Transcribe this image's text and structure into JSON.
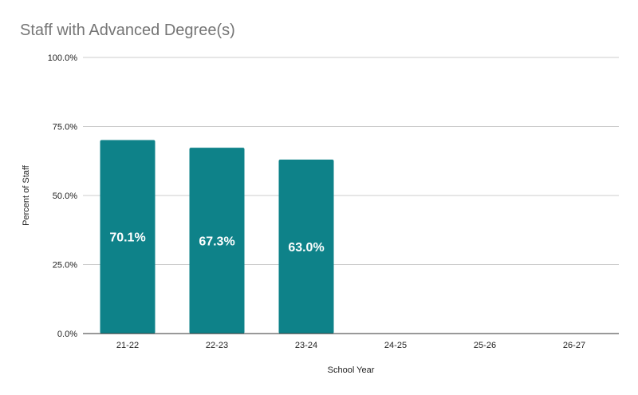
{
  "chart_data": {
    "type": "bar",
    "title": "Staff with Advanced Degree(s)",
    "xlabel": "School Year",
    "ylabel": "Percent of Staff",
    "categories": [
      "21-22",
      "22-23",
      "23-24",
      "24-25",
      "25-26",
      "26-27"
    ],
    "values": [
      70.1,
      67.3,
      63.0,
      null,
      null,
      null
    ],
    "data_labels": [
      "70.1%",
      "67.3%",
      "63.0%",
      "",
      "",
      ""
    ],
    "ylim": [
      0,
      100
    ],
    "y_ticks": [
      0,
      25,
      50,
      75,
      100
    ],
    "y_tick_labels": [
      "0.0%",
      "25.0%",
      "50.0%",
      "75.0%",
      "100.0%"
    ],
    "grid": true,
    "legend": "none",
    "bar_color": "#0e8289",
    "grid_color": "#cccccc",
    "axis_color": "#333333"
  }
}
